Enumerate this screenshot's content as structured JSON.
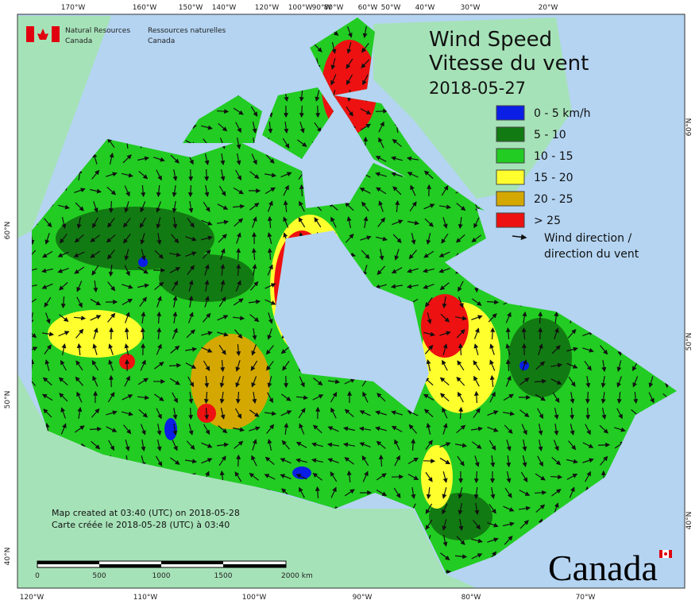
{
  "header": {
    "agency_en": [
      "Natural Resources",
      "Canada"
    ],
    "agency_fr": [
      "Ressources naturelles",
      "Canada"
    ]
  },
  "title": [
    "Wind Speed",
    "Vitesse du vent"
  ],
  "date": "2018-05-27",
  "legend": {
    "items": [
      {
        "label": "0 - 5 km/h",
        "color": "#0a1ee6"
      },
      {
        "label": "5 - 10",
        "color": "#127a12"
      },
      {
        "label": "10 - 15",
        "color": "#22cc22"
      },
      {
        "label": "15 - 20",
        "color": "#ffff2e"
      },
      {
        "label": "20 - 25",
        "color": "#d4a800"
      },
      {
        "label": "> 25",
        "color": "#ee1111"
      }
    ],
    "arrow": [
      "Wind direction /",
      "direction du vent"
    ]
  },
  "notes": [
    "Map created at 03:40 (UTC) on 2018-05-28",
    "Carte créée le 2018-05-28 (UTC) à 03:40"
  ],
  "scale": [
    "0",
    "500",
    "1000",
    "1500",
    "2000  km"
  ],
  "graticule": {
    "top": [
      "170°W",
      "160°W",
      "150°W",
      "140°W",
      "120°W",
      "100°W",
      "90°W",
      "80°W",
      "60°W",
      "50°W",
      "40°W",
      "30°W",
      "20°W"
    ],
    "bottom": [
      "120°W",
      "110°W",
      "100°W",
      "90°W",
      "80°W",
      "70°W"
    ],
    "left": [
      "60°N",
      "50°N",
      "40°N"
    ],
    "right": [
      "60°N",
      "50°N",
      "40°N"
    ]
  },
  "wordmark": "Canada"
}
